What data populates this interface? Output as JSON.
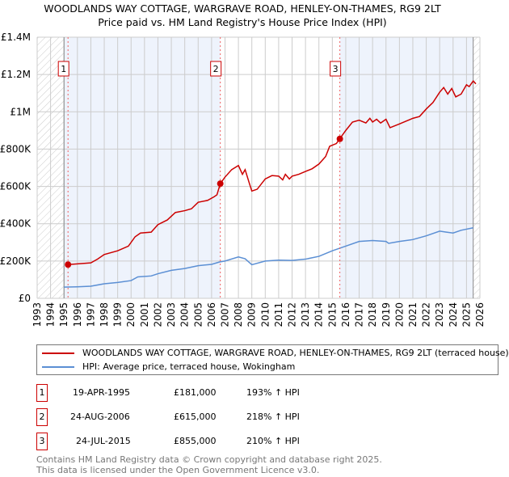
{
  "chart_data": {
    "type": "line",
    "title": "WOODLANDS WAY COTTAGE, WARGRAVE ROAD, HENLEY-ON-THAMES, RG9 2LT",
    "subtitle": "Price paid vs. HM Land Registry's House Price Index (HPI)",
    "xlim": [
      1993,
      2026
    ],
    "ylim": [
      0,
      1400000
    ],
    "x_ticks": [
      "1993",
      "1994",
      "1995",
      "1996",
      "1997",
      "1998",
      "1999",
      "2000",
      "2001",
      "2002",
      "2003",
      "2004",
      "2005",
      "2006",
      "2007",
      "2008",
      "2009",
      "2010",
      "2011",
      "2012",
      "2013",
      "2014",
      "2015",
      "2016",
      "2017",
      "2018",
      "2019",
      "2020",
      "2021",
      "2022",
      "2023",
      "2024",
      "2025",
      "2026"
    ],
    "y_ticks": [
      {
        "v": 0,
        "label": "£0"
      },
      {
        "v": 200000,
        "label": "£200K"
      },
      {
        "v": 400000,
        "label": "£400K"
      },
      {
        "v": 600000,
        "label": "£600K"
      },
      {
        "v": 800000,
        "label": "£800K"
      },
      {
        "v": 1000000,
        "label": "£1M"
      },
      {
        "v": 1200000,
        "label": "£1.2M"
      },
      {
        "v": 1400000,
        "label": "£1.4M"
      }
    ],
    "grid": true,
    "series": [
      {
        "name": "WOODLANDS WAY COTTAGE, WARGRAVE ROAD, HENLEY-ON-THAMES, RG9 2LT (terraced house)",
        "color": "#cc0000",
        "x": [
          1995.3,
          1996,
          1997,
          1997.5,
          1998,
          1999,
          1999.8,
          2000.3,
          2000.7,
          2001.5,
          2002,
          2002.7,
          2003.3,
          2004,
          2004.5,
          2005,
          2005.7,
          2006.2,
          2006.4,
          2006.65,
          2007,
          2007.5,
          2008,
          2008.3,
          2008.5,
          2008.8,
          2009,
          2009.4,
          2010,
          2010.5,
          2011,
          2011.3,
          2011.5,
          2011.8,
          2012,
          2012.5,
          2013,
          2013.5,
          2014,
          2014.5,
          2014.8,
          2015.3,
          2015.55,
          2016,
          2016.5,
          2017,
          2017.5,
          2017.8,
          2018,
          2018.3,
          2018.6,
          2019,
          2019.3,
          2020,
          2020.5,
          2021,
          2021.5,
          2022,
          2022.5,
          2023,
          2023.3,
          2023.6,
          2023.9,
          2024.2,
          2024.6,
          2025,
          2025.2,
          2025.5,
          2025.7
        ],
        "y": [
          181,
          185,
          190,
          210,
          235,
          255,
          280,
          330,
          350,
          355,
          395,
          420,
          460,
          470,
          480,
          515,
          525,
          545,
          555,
          615,
          650,
          690,
          712,
          665,
          690,
          620,
          575,
          585,
          640,
          658,
          655,
          635,
          665,
          640,
          655,
          665,
          680,
          695,
          720,
          760,
          815,
          830,
          855,
          900,
          945,
          955,
          940,
          965,
          945,
          960,
          940,
          960,
          915,
          935,
          950,
          965,
          975,
          1015,
          1050,
          1105,
          1130,
          1095,
          1125,
          1080,
          1095,
          1145,
          1135,
          1165,
          1150
        ],
        "y_unit": "thousands GBP"
      },
      {
        "name": "HPI: Average price, terraced house, Wokingham",
        "color": "#5b8fd4",
        "x": [
          1995,
          1996,
          1997,
          1998,
          1999,
          2000,
          2000.5,
          2001.5,
          2002,
          2003,
          2004,
          2005,
          2006,
          2006.6,
          2007,
          2008,
          2008.5,
          2009,
          2010,
          2011,
          2012,
          2013,
          2014,
          2015,
          2016,
          2017,
          2018,
          2019,
          2019.2,
          2020,
          2021,
          2022,
          2023,
          2023.5,
          2024,
          2024.6,
          2025.5
        ],
        "y": [
          60,
          62,
          65,
          78,
          85,
          95,
          115,
          120,
          132,
          150,
          160,
          175,
          182,
          195,
          200,
          222,
          212,
          180,
          200,
          205,
          203,
          210,
          225,
          255,
          280,
          305,
          310,
          305,
          295,
          305,
          315,
          335,
          360,
          355,
          350,
          365,
          378
        ],
        "y_unit": "thousands GBP"
      }
    ],
    "sales": [
      {
        "num": "1",
        "x": 1995.3,
        "value": 181,
        "date": "19-APR-1995",
        "price": "£181,000",
        "hpi": "193% ↑ HPI"
      },
      {
        "num": "2",
        "x": 2006.65,
        "value": 615,
        "date": "24-AUG-2006",
        "price": "£615,000",
        "hpi": "218% ↑ HPI"
      },
      {
        "num": "3",
        "x": 2015.56,
        "value": 855,
        "date": "24-JUL-2015",
        "price": "£855,000",
        "hpi": "210% ↑ HPI"
      }
    ],
    "legend_position": "below"
  },
  "footer": {
    "line1": "Contains HM Land Registry data © Crown copyright and database right 2025.",
    "line2": "This data is licensed under the Open Government Licence v3.0."
  }
}
